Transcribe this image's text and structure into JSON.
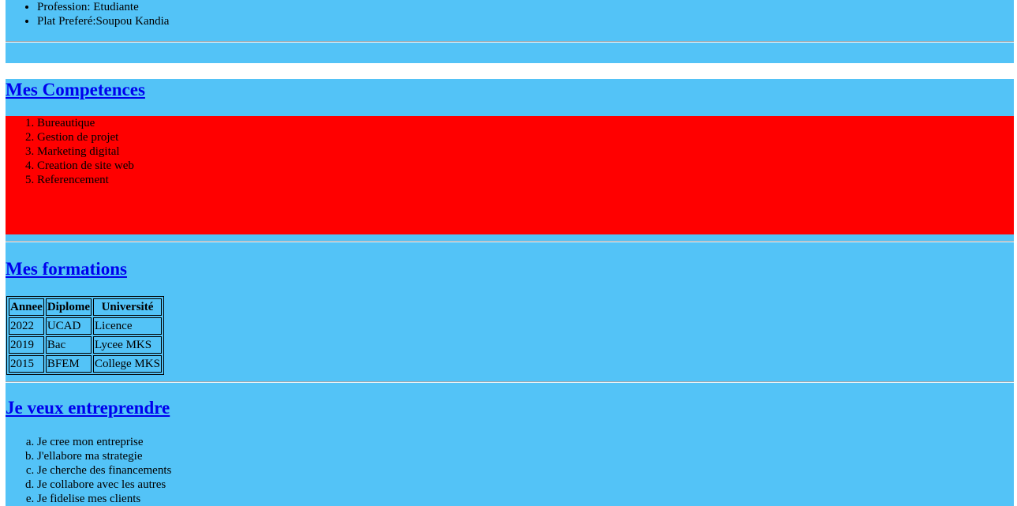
{
  "profile": {
    "items": [
      "Profession: Etudiante",
      "Plat Preferé:Soupou Kandia"
    ]
  },
  "competences": {
    "title": "Mes Competences",
    "items": [
      "Bureautique",
      "Gestion de projet",
      "Marketing digital",
      "Creation de site web",
      "Referencement"
    ]
  },
  "formations": {
    "title": "Mes formations",
    "headers": [
      "Annee",
      "Diplome",
      "Université"
    ],
    "rows": [
      [
        "2022",
        "UCAD",
        "Licence"
      ],
      [
        "2019",
        "Bac",
        "Lycee MKS"
      ],
      [
        "2015",
        "BFEM",
        "College MKS"
      ]
    ]
  },
  "entreprendre": {
    "title": "Je veux entreprendre",
    "items": [
      "Je cree mon entreprise",
      "J'ellabore ma strategie",
      "Je cherche des financements",
      "Je collabore avec les autres",
      "Je fidelise mes clients"
    ]
  },
  "colors": {
    "section_background": "#53c3f7",
    "skills_background": "#ff0000",
    "link": "#0000ee"
  }
}
